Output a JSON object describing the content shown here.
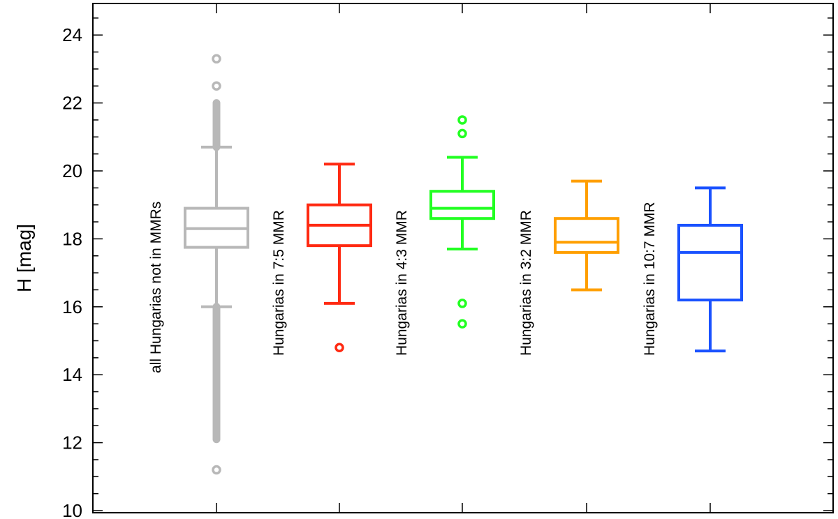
{
  "chart_data": {
    "type": "box",
    "ylabel": "H [mag]",
    "ylim": [
      10,
      25
    ],
    "yticks": [
      10,
      12,
      14,
      16,
      18,
      20,
      22,
      24
    ],
    "y_minor_step": 0.5,
    "grid": false,
    "series": [
      {
        "name": "all Hungarias not in MMRs",
        "color": "#b8b8b8",
        "q1": 17.75,
        "median": 18.3,
        "q3": 18.9,
        "whisker_low": 16.0,
        "whisker_high": 20.7,
        "outlier_ranges": [
          [
            12.1,
            16.0
          ],
          [
            20.7,
            22.0
          ]
        ],
        "outliers": [
          11.2,
          22.5,
          23.3
        ]
      },
      {
        "name": "Hungarias in 7:5 MMR",
        "color": "#ff2a12",
        "q1": 17.8,
        "median": 18.4,
        "q3": 19.0,
        "whisker_low": 16.1,
        "whisker_high": 20.2,
        "outliers": [
          14.8
        ]
      },
      {
        "name": "Hungarias in 4:3 MMR",
        "color": "#22ff22",
        "q1": 18.6,
        "median": 18.9,
        "q3": 19.4,
        "whisker_low": 17.7,
        "whisker_high": 20.4,
        "outliers": [
          15.5,
          16.1,
          21.1,
          21.5
        ]
      },
      {
        "name": "Hungarias in 3:2 MMR",
        "color": "#ff9f00",
        "q1": 17.6,
        "median": 17.9,
        "q3": 18.6,
        "whisker_low": 16.5,
        "whisker_high": 19.7,
        "outliers": []
      },
      {
        "name": "Hungarias in 10:7 MMR",
        "color": "#1a52ff",
        "q1": 16.2,
        "median": 17.6,
        "q3": 18.4,
        "whisker_low": 14.7,
        "whisker_high": 19.5,
        "outliers": []
      }
    ]
  }
}
